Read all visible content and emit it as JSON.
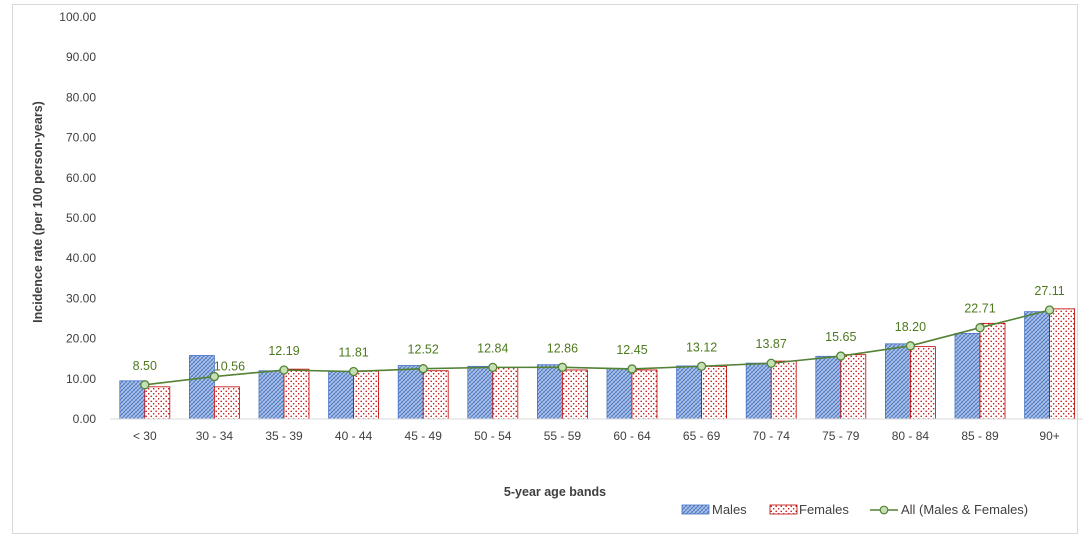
{
  "chart_data": {
    "type": "bar",
    "title": "",
    "xlabel": "5-year age bands",
    "ylabel": "Incidence rate (per 100 person-years)",
    "ylim": [
      0,
      100
    ],
    "y_tick_step": 10,
    "y_tick_format": "0.00",
    "grid": false,
    "legend_position": "bottom-right",
    "categories": [
      "< 30",
      "30 - 34",
      "35 - 39",
      "40 - 44",
      "45 - 49",
      "50 - 54",
      "55 - 59",
      "60 - 64",
      "65 - 69",
      "70 - 74",
      "75 - 79",
      "80 - 84",
      "85 - 89",
      "90+"
    ],
    "series": [
      {
        "name": "Males",
        "kind": "bar",
        "pattern": "blue-crosshatch",
        "color": "#4472c4",
        "values": [
          9.5,
          15.8,
          12.0,
          11.8,
          13.3,
          13.1,
          13.5,
          12.6,
          13.2,
          13.9,
          15.6,
          18.7,
          21.3,
          26.7
        ]
      },
      {
        "name": "Females",
        "kind": "bar",
        "pattern": "red-dotted",
        "color": "#c00000",
        "values": [
          8.0,
          8.0,
          12.4,
          12.0,
          12.0,
          12.8,
          12.2,
          12.2,
          13.1,
          14.4,
          16.0,
          18.0,
          23.8,
          27.4
        ]
      },
      {
        "name": "All (Males & Females)",
        "kind": "line",
        "color": "#548235",
        "marker_fill": "#c5e0b4",
        "values": [
          8.5,
          10.56,
          12.19,
          11.81,
          12.52,
          12.84,
          12.86,
          12.45,
          13.12,
          13.87,
          15.65,
          18.2,
          22.71,
          27.11
        ],
        "data_labels": [
          "8.50",
          "10.56",
          "12.19",
          "11.81",
          "12.52",
          "12.84",
          "12.86",
          "12.45",
          "13.12",
          "13.87",
          "15.65",
          "18.20",
          "22.71",
          "27.11"
        ]
      }
    ]
  }
}
